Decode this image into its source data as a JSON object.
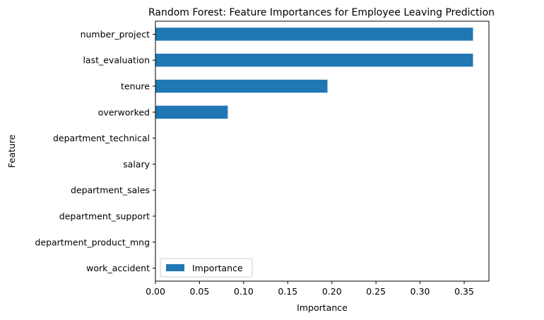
{
  "chart_data": {
    "type": "bar",
    "orientation": "horizontal",
    "title": "Random Forest: Feature Importances for Employee Leaving Prediction",
    "xlabel": "Importance",
    "ylabel": "Feature",
    "categories": [
      "number_project",
      "last_evaluation",
      "tenure",
      "overworked",
      "department_technical",
      "salary",
      "department_sales",
      "department_support",
      "department_product_mng",
      "work_accident"
    ],
    "series": [
      {
        "name": "Importance",
        "color": "#1f77b4",
        "values": [
          0.36,
          0.36,
          0.195,
          0.082,
          0,
          0,
          0,
          0,
          0,
          0
        ]
      }
    ],
    "xlim": [
      0,
      0.378
    ],
    "xticks": [
      0.0,
      0.05,
      0.1,
      0.15,
      0.2,
      0.25,
      0.3,
      0.35
    ],
    "xtick_labels": [
      "0.00",
      "0.05",
      "0.10",
      "0.15",
      "0.20",
      "0.25",
      "0.30",
      "0.35"
    ],
    "grid": false,
    "legend_position": "lower-left"
  }
}
